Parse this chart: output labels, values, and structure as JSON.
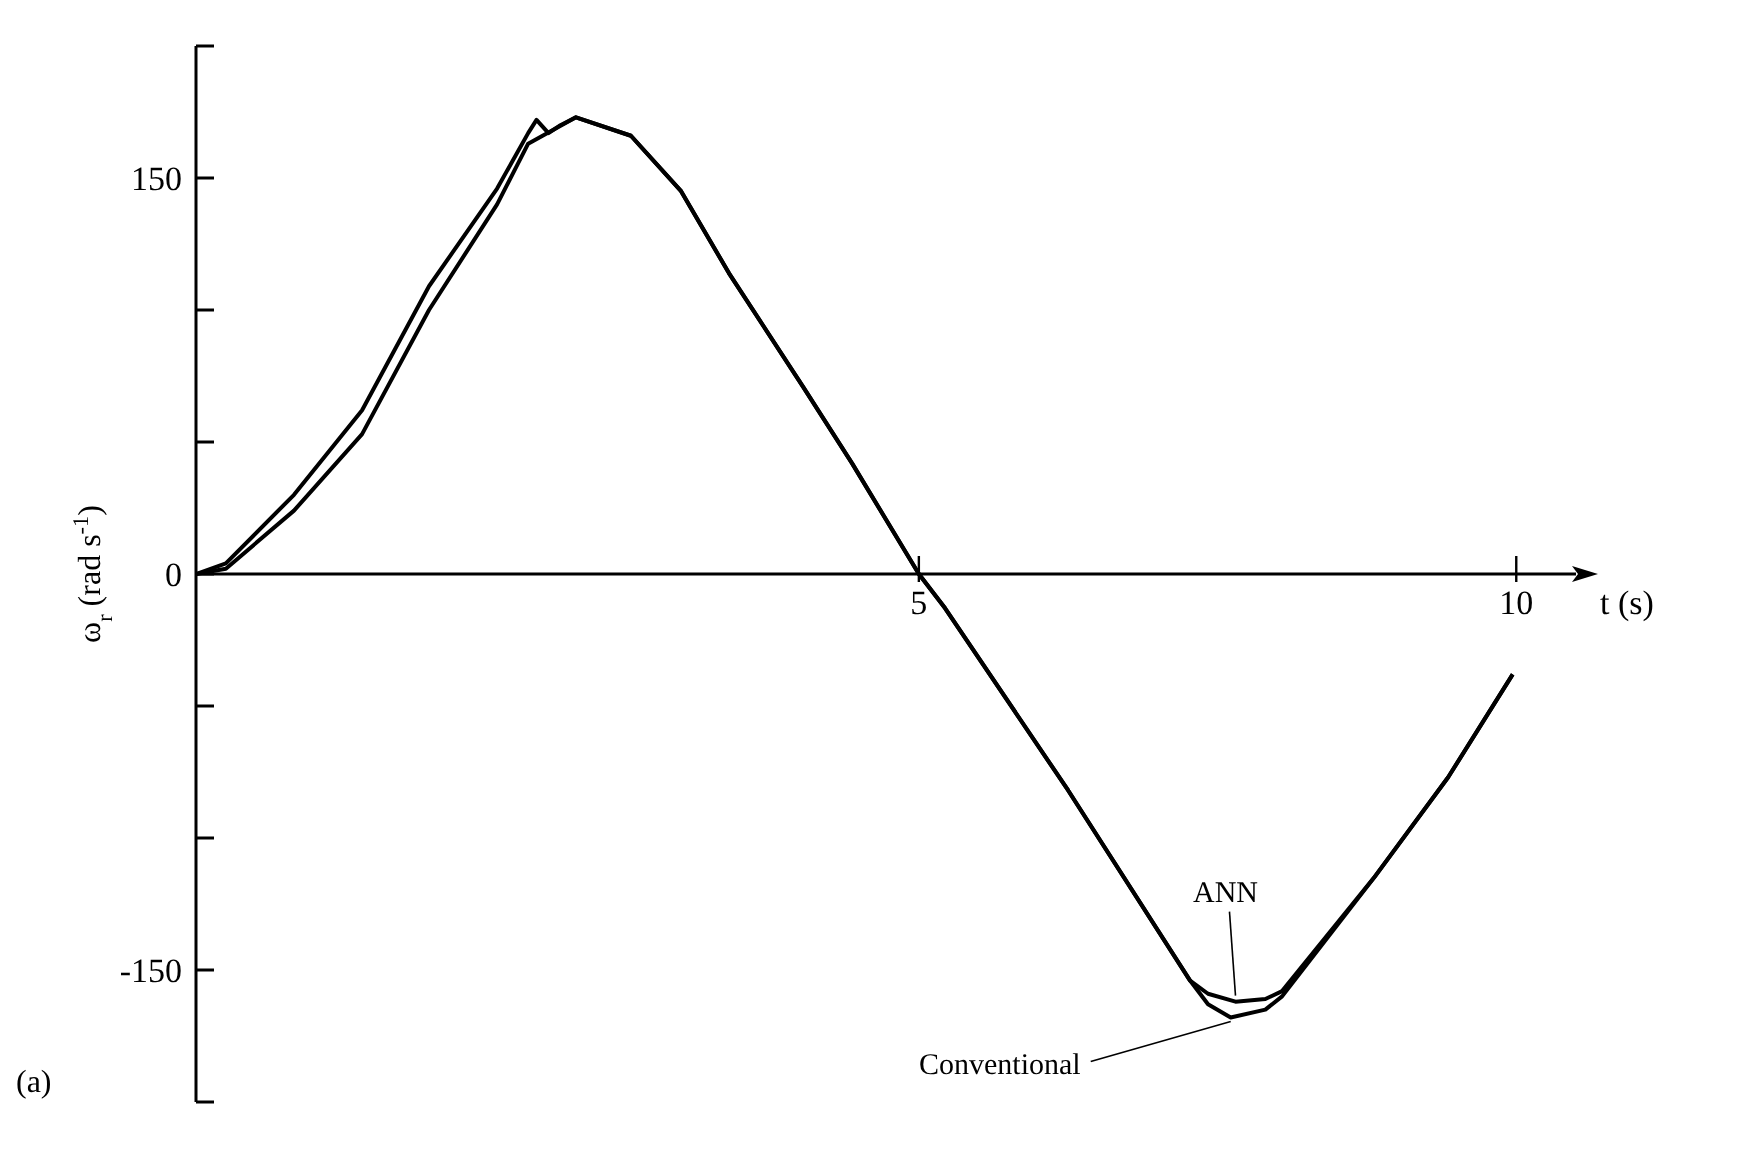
{
  "chart_data": {
    "type": "line",
    "xlabel": "t (s)",
    "ylabel": "ω$_{r}$ (rad s$^{-1}$)",
    "xlim": [
      -1.05,
      10.5
    ],
    "xticks": [
      5,
      10
    ],
    "ylim": [
      -200,
      200
    ],
    "yticks": [
      {
        "value": -200,
        "label": null
      },
      -150,
      {
        "value": -100,
        "label": null
      },
      {
        "value": -50,
        "label": null
      },
      0,
      {
        "value": 50,
        "label": null
      },
      {
        "value": 100,
        "label": null
      },
      150,
      {
        "value": 200,
        "label": null
      }
    ],
    "marker": "none",
    "series": [
      {
        "name": "ANN",
        "color": "#000000",
        "x": [
          -1.05,
          -0.8,
          -0.23,
          0.34,
          0.9,
          1.47,
          1.73,
          1.8,
          1.9,
          2.0,
          2.13,
          2.59,
          3.01,
          3.41,
          4.03,
          4.44,
          5.0,
          5.22,
          6.25,
          7.27,
          7.42,
          7.65,
          7.9,
          8.04,
          8.81,
          9.43,
          9.97
        ],
        "values": [
          0,
          4,
          30,
          62,
          109,
          146,
          167,
          172,
          167,
          170,
          173,
          166,
          145,
          114,
          71,
          42,
          0,
          -13,
          -82,
          -154,
          -159,
          -162,
          -161,
          -158,
          -115,
          -77,
          -38
        ]
      },
      {
        "name": "Conventional",
        "color": "#000000",
        "x": [
          -1.05,
          -0.8,
          -0.23,
          0.34,
          0.9,
          1.47,
          1.73,
          2.13,
          2.59,
          3.01,
          3.41,
          4.03,
          4.44,
          5.0,
          5.22,
          6.25,
          7.27,
          7.42,
          7.61,
          7.9,
          8.04,
          8.81,
          9.43,
          9.97
        ],
        "values": [
          0,
          2,
          24,
          53,
          100,
          140,
          163,
          173,
          166,
          145,
          114,
          71,
          42,
          0,
          -13,
          -82,
          -154,
          -163,
          -168,
          -165,
          -160,
          -115,
          -77,
          -38
        ]
      }
    ],
    "annotations": [
      "(a)"
    ]
  }
}
